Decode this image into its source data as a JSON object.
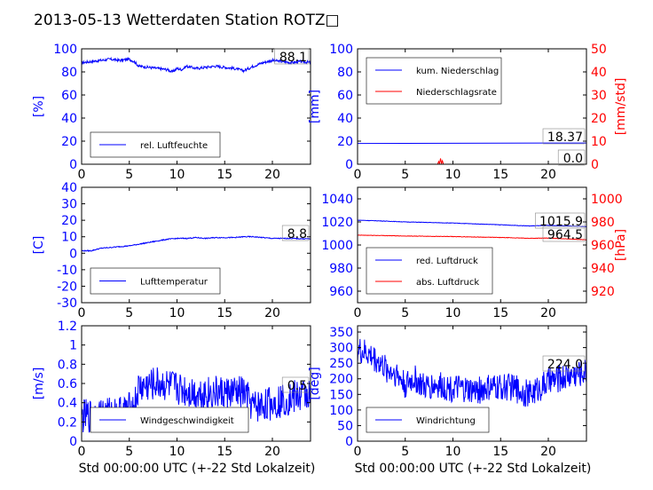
{
  "figure": {
    "title": "2013-05-13 Wetterdaten Station ROTZ□"
  },
  "colors": {
    "primary": "#0000ff",
    "secondary": "#ff0000",
    "axis": "#000000",
    "box": "#888888"
  },
  "chart_data": [
    {
      "type": "line",
      "panel": "rel-luftfeuchte",
      "xlim": [
        0,
        24
      ],
      "ylim": [
        0,
        100
      ],
      "xticks": [
        0,
        5,
        10,
        15,
        20
      ],
      "yticks": [
        0,
        20,
        40,
        60,
        80,
        100
      ],
      "ylabel": "[%]",
      "legend": [
        "rel. Luftfeuchte"
      ],
      "legend_loc": "lower-left",
      "annotation": "88.1",
      "series": [
        {
          "name": "rel. Luftfeuchte",
          "x": [
            0,
            1,
            2,
            3,
            4,
            5,
            5.5,
            6,
            7,
            8,
            9,
            9.5,
            10,
            10.5,
            11,
            12,
            13,
            14,
            15,
            16,
            17,
            18,
            19,
            20,
            21,
            22,
            23,
            24
          ],
          "y": [
            88,
            89,
            90,
            91,
            90,
            91,
            89,
            85,
            84,
            83,
            82,
            80,
            83,
            82,
            85,
            83,
            84,
            85,
            84,
            83,
            81,
            85,
            88,
            90,
            89,
            88,
            89,
            88.1
          ],
          "noise": 1.2
        }
      ]
    },
    {
      "type": "line",
      "panel": "niederschlag",
      "xlim": [
        0,
        24
      ],
      "ylim": [
        0,
        100
      ],
      "y2lim": [
        0,
        50
      ],
      "xticks": [
        0,
        5,
        10,
        15,
        20
      ],
      "yticks": [
        0,
        20,
        40,
        60,
        80,
        100
      ],
      "y2ticks": [
        0,
        10,
        20,
        30,
        40,
        50
      ],
      "ylabel": "[mm]",
      "y2label": "[mm/std]",
      "legend": [
        "kum. Niederschlag",
        "Niederschlagsrate"
      ],
      "legend_loc": "top-left",
      "annotations": [
        "18.37",
        "0.0"
      ],
      "series": [
        {
          "name": "kum. Niederschlag",
          "axis": "left",
          "x": [
            0,
            5,
            10,
            15,
            20,
            24
          ],
          "y": [
            18.0,
            18.1,
            18.2,
            18.3,
            18.35,
            18.37
          ],
          "noise": 0
        },
        {
          "name": "Niederschlagsrate",
          "axis": "right",
          "x": [
            0,
            8.4,
            8.5,
            8.6,
            8.7,
            8.8,
            8.9,
            9.0,
            9.1,
            24
          ],
          "y": [
            0,
            0,
            1.2,
            0.2,
            2.5,
            0.3,
            1.5,
            0,
            0,
            0
          ],
          "noise": 0
        }
      ]
    },
    {
      "type": "line",
      "panel": "lufttemperatur",
      "xlim": [
        0,
        24
      ],
      "ylim": [
        -30,
        40
      ],
      "xticks": [
        0,
        5,
        10,
        15,
        20
      ],
      "yticks": [
        -30,
        -20,
        -10,
        0,
        10,
        20,
        30,
        40
      ],
      "ylabel": "[C]",
      "legend": [
        "Lufttemperatur"
      ],
      "legend_loc": "lower-left",
      "annotation": "8.8",
      "series": [
        {
          "name": "Lufttemperatur",
          "x": [
            0,
            1,
            2,
            3,
            4,
            5,
            6,
            7,
            8,
            9,
            10,
            11,
            12,
            13,
            14,
            15,
            16,
            17,
            18,
            19,
            20,
            21,
            22,
            23,
            24
          ],
          "y": [
            1.5,
            1.5,
            3,
            3.5,
            4,
            4.5,
            5.5,
            6.5,
            7.5,
            8.5,
            9,
            9,
            9.5,
            9,
            9.5,
            9.5,
            9.5,
            10,
            10,
            9.5,
            9,
            9,
            9,
            8.8,
            8.8
          ],
          "noise": 0.3
        }
      ]
    },
    {
      "type": "line",
      "panel": "luftdruck",
      "xlim": [
        0,
        24
      ],
      "ylim": [
        950,
        1050
      ],
      "y2lim": [
        910,
        1010
      ],
      "xticks": [
        0,
        5,
        10,
        15,
        20
      ],
      "yticks": [
        960,
        980,
        1000,
        1020,
        1040
      ],
      "y2ticks": [
        920,
        940,
        960,
        980,
        1000
      ],
      "ylabel": "",
      "y2label": "[hPa]",
      "legend": [
        "red. Luftdruck",
        "abs. Luftdruck"
      ],
      "legend_loc": "lower-left",
      "annotations": [
        "1015.9",
        "964.5"
      ],
      "series": [
        {
          "name": "red. Luftdruck",
          "axis": "left",
          "x": [
            0,
            2,
            5,
            10,
            15,
            18,
            20,
            22,
            24
          ],
          "y": [
            1021.5,
            1021,
            1020,
            1019,
            1017.5,
            1016.5,
            1017,
            1016.5,
            1016
          ],
          "noise": 0.2
        },
        {
          "name": "abs. Luftdruck",
          "axis": "right",
          "x": [
            0,
            2,
            5,
            10,
            15,
            18,
            20,
            22,
            24
          ],
          "y": [
            968.5,
            968.3,
            967.8,
            967.3,
            966.5,
            965.8,
            966,
            965.3,
            964.5
          ],
          "noise": 0.2
        }
      ]
    },
    {
      "type": "line",
      "panel": "windgeschwindigkeit",
      "xlim": [
        0,
        24
      ],
      "ylim": [
        0,
        1.2
      ],
      "xticks": [
        0,
        5,
        10,
        15,
        20
      ],
      "yticks": [
        0.0,
        0.2,
        0.4,
        0.6,
        0.8,
        1.0,
        1.2
      ],
      "ylabel": "[m/s]",
      "legend": [
        "Windgeschwindigkeit"
      ],
      "legend_loc": "lower-left",
      "annotation": "0.5",
      "series": [
        {
          "name": "Windgeschwindigkeit",
          "x": [
            0,
            2,
            4,
            5.5,
            6,
            8,
            10,
            12,
            14,
            17,
            18,
            20,
            22,
            24
          ],
          "y": [
            0.25,
            0.28,
            0.3,
            0.35,
            0.55,
            0.6,
            0.55,
            0.5,
            0.5,
            0.5,
            0.35,
            0.4,
            0.45,
            0.5
          ],
          "noise": 0.18
        }
      ]
    },
    {
      "type": "line",
      "panel": "windrichtung",
      "xlim": [
        0,
        24
      ],
      "ylim": [
        0,
        370
      ],
      "xticks": [
        0,
        5,
        10,
        15,
        20
      ],
      "yticks": [
        0,
        50,
        100,
        150,
        200,
        250,
        300,
        350
      ],
      "ylabel": "[deg]",
      "legend": [
        "Windrichtung"
      ],
      "legend_loc": "lower-left",
      "annotation": "224.0",
      "series": [
        {
          "name": "Windrichtung",
          "x": [
            0,
            1,
            2,
            3,
            4,
            5,
            6,
            7,
            8,
            10,
            12,
            14,
            16,
            18,
            20,
            22,
            24
          ],
          "y": [
            290,
            280,
            260,
            230,
            220,
            180,
            200,
            170,
            180,
            170,
            160,
            170,
            175,
            150,
            190,
            210,
            224
          ],
          "noise": 45
        }
      ]
    }
  ],
  "xlabel_common": "Std 00:00:00 UTC (+-22 Std Lokalzeit)"
}
